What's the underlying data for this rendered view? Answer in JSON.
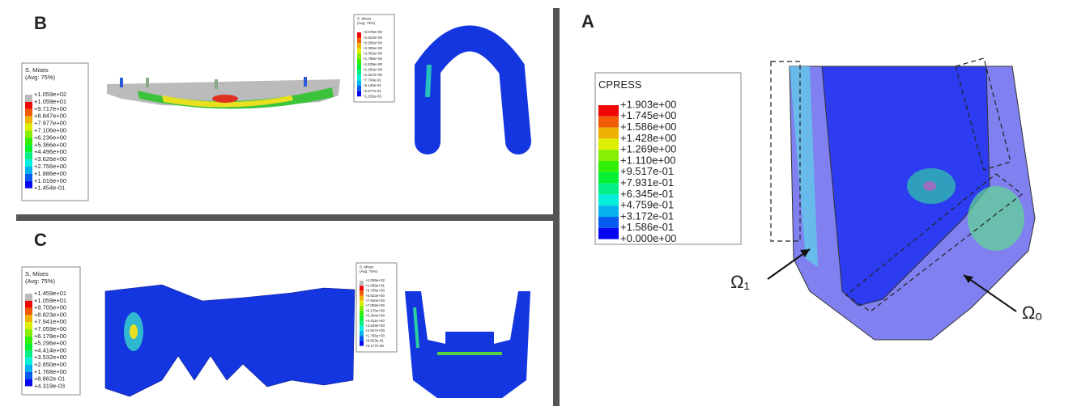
{
  "panel_b": {
    "label": "B",
    "legends": [
      {
        "title": "S, Mises",
        "subtitle": "(Avg: 75%)",
        "entries": [
          "+1.059e+02",
          "+1.059e+01",
          "+9.717e+00",
          "+8.847e+00",
          "+7.977e+00",
          "+7.106e+00",
          "+6.236e+00",
          "+5.366e+00",
          "+4.496e+00",
          "+3.626e+00",
          "+2.756e+00",
          "+1.886e+00",
          "+1.016e+00",
          "+1.454e-01"
        ]
      },
      {
        "title": "S, Mises",
        "subtitle": "(Avg: 75%)",
        "entries": [
          "+3.078e+00",
          "+2.822e+00",
          "+2.565e+00",
          "+2.309e+00",
          "+2.052e+00",
          "+1.796e+00",
          "+1.539e+00",
          "+1.283e+00",
          "+1.027e+00",
          "+7.704e-01",
          "+5.140e-01",
          "+2.577e-01",
          "+1.332e-03"
        ]
      }
    ]
  },
  "panel_c": {
    "label": "C",
    "legends": [
      {
        "title": "S, Mises",
        "subtitle": "(Avg: 75%)",
        "entries": [
          "+1.459e+01",
          "+1.059e+01",
          "+9.705e+00",
          "+8.823e+00",
          "+7.941e+00",
          "+7.059e+00",
          "+6.178e+00",
          "+5.296e+00",
          "+4.414e+00",
          "+3.532e+00",
          "+2.650e+00",
          "+1.768e+00",
          "+8.862e-01",
          "+4.319e-03"
        ]
      },
      {
        "title": "S, Mises",
        "subtitle": "(Avg: 75%)",
        "entries": [
          "+1.059e+02",
          "+1.059e+01",
          "+9.705e+00",
          "+8.823e+00",
          "+7.940e+00",
          "+7.058e+00",
          "+6.176e+00",
          "+5.294e+00",
          "+4.411e+00",
          "+3.529e+00",
          "+2.647e+00",
          "+1.765e+00",
          "+8.823e-01",
          "+5.177e-06"
        ]
      }
    ]
  },
  "panel_a": {
    "label": "A",
    "legend": {
      "title": "CPRESS",
      "entries": [
        "+1.903e+00",
        "+1.745e+00",
        "+1.586e+00",
        "+1.428e+00",
        "+1.269e+00",
        "+1.110e+00",
        "+9.517e-01",
        "+7.931e-01",
        "+6.345e-01",
        "+4.759e-01",
        "+3.172e-01",
        "+1.586e-01",
        "+0.000e+00"
      ]
    },
    "annotations": [
      "Ω₁",
      "Ωₒ"
    ]
  }
}
